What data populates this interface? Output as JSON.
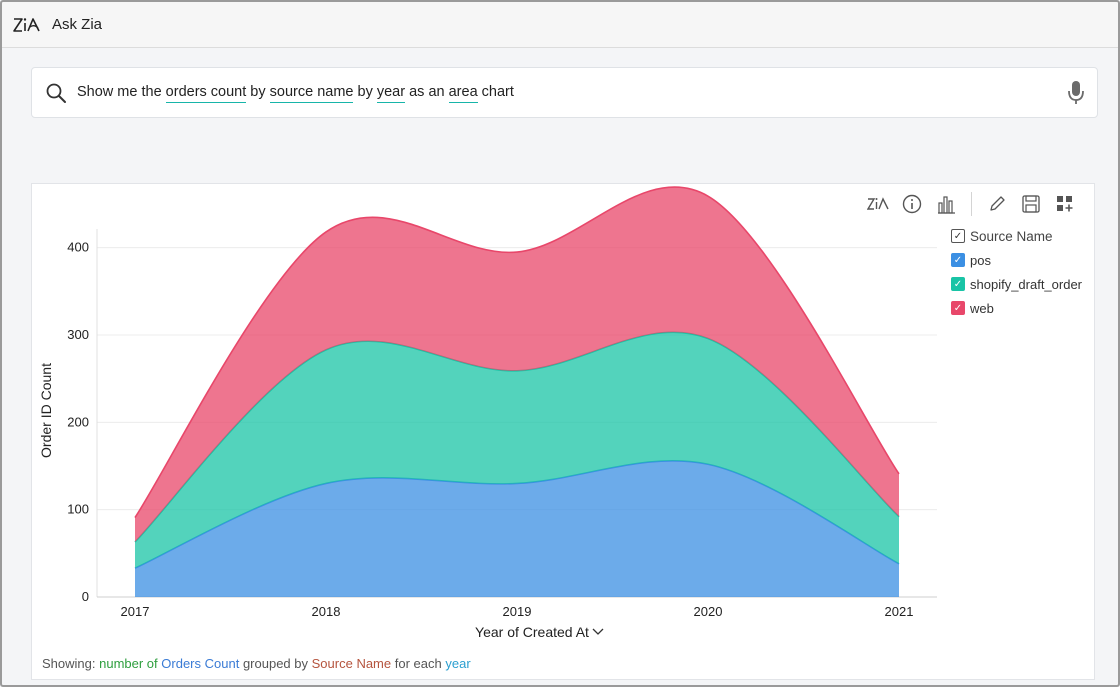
{
  "app": {
    "title": "Ask Zia"
  },
  "search": {
    "segments": [
      {
        "text": "Show me the ",
        "kw": false
      },
      {
        "text": "orders count",
        "kw": true
      },
      {
        "text": " by ",
        "kw": false
      },
      {
        "text": "source name",
        "kw": true
      },
      {
        "text": " by ",
        "kw": false
      },
      {
        "text": "year",
        "kw": true
      },
      {
        "text": " as an ",
        "kw": false
      },
      {
        "text": "area",
        "kw": true
      },
      {
        "text": " chart",
        "kw": false
      }
    ],
    "mic_icon": "microphone-icon",
    "search_icon": "search-icon"
  },
  "toolbar": {
    "icons": [
      "zia-icon",
      "info-icon",
      "bar-chart-icon",
      "pencil-icon",
      "save-icon",
      "add-to-dashboard-icon"
    ]
  },
  "legend": {
    "title": "Source Name",
    "items": [
      {
        "label": "pos",
        "color": "#3b8fe3"
      },
      {
        "label": "shopify_draft_order",
        "color": "#19c4a6"
      },
      {
        "label": "web",
        "color": "#e8476a"
      }
    ]
  },
  "chart_data": {
    "type": "area",
    "stacked": true,
    "smooth": true,
    "x": [
      "2017",
      "2018",
      "2019",
      "2020",
      "2021"
    ],
    "series": [
      {
        "name": "pos",
        "values": [
          33,
          130,
          130,
          152,
          38
        ],
        "color": "#3b8fe3"
      },
      {
        "name": "shopify_draft_order",
        "values": [
          30,
          153,
          129,
          144,
          54
        ],
        "color": "#19c4a6"
      },
      {
        "name": "web",
        "values": [
          28,
          135,
          136,
          163,
          49
        ],
        "color": "#e8476a"
      }
    ],
    "ylabel": "Order ID Count",
    "xlabel": "Year of Created At",
    "yticks": [
      0,
      100,
      200,
      300,
      400
    ],
    "ylim": [
      0,
      450
    ],
    "grid": true,
    "legend_position": "right"
  },
  "footer": {
    "label": "Showing:",
    "parts": [
      {
        "text": "number of",
        "color": "#2e9e3e"
      },
      {
        "text": "Orders Count",
        "color": "#3a7bd5"
      },
      {
        "text": "grouped by",
        "color": "#555555"
      },
      {
        "text": "Source Name",
        "color": "#b5543e"
      },
      {
        "text": "for each",
        "color": "#555555"
      },
      {
        "text": "year",
        "color": "#2b9fd0"
      }
    ]
  }
}
